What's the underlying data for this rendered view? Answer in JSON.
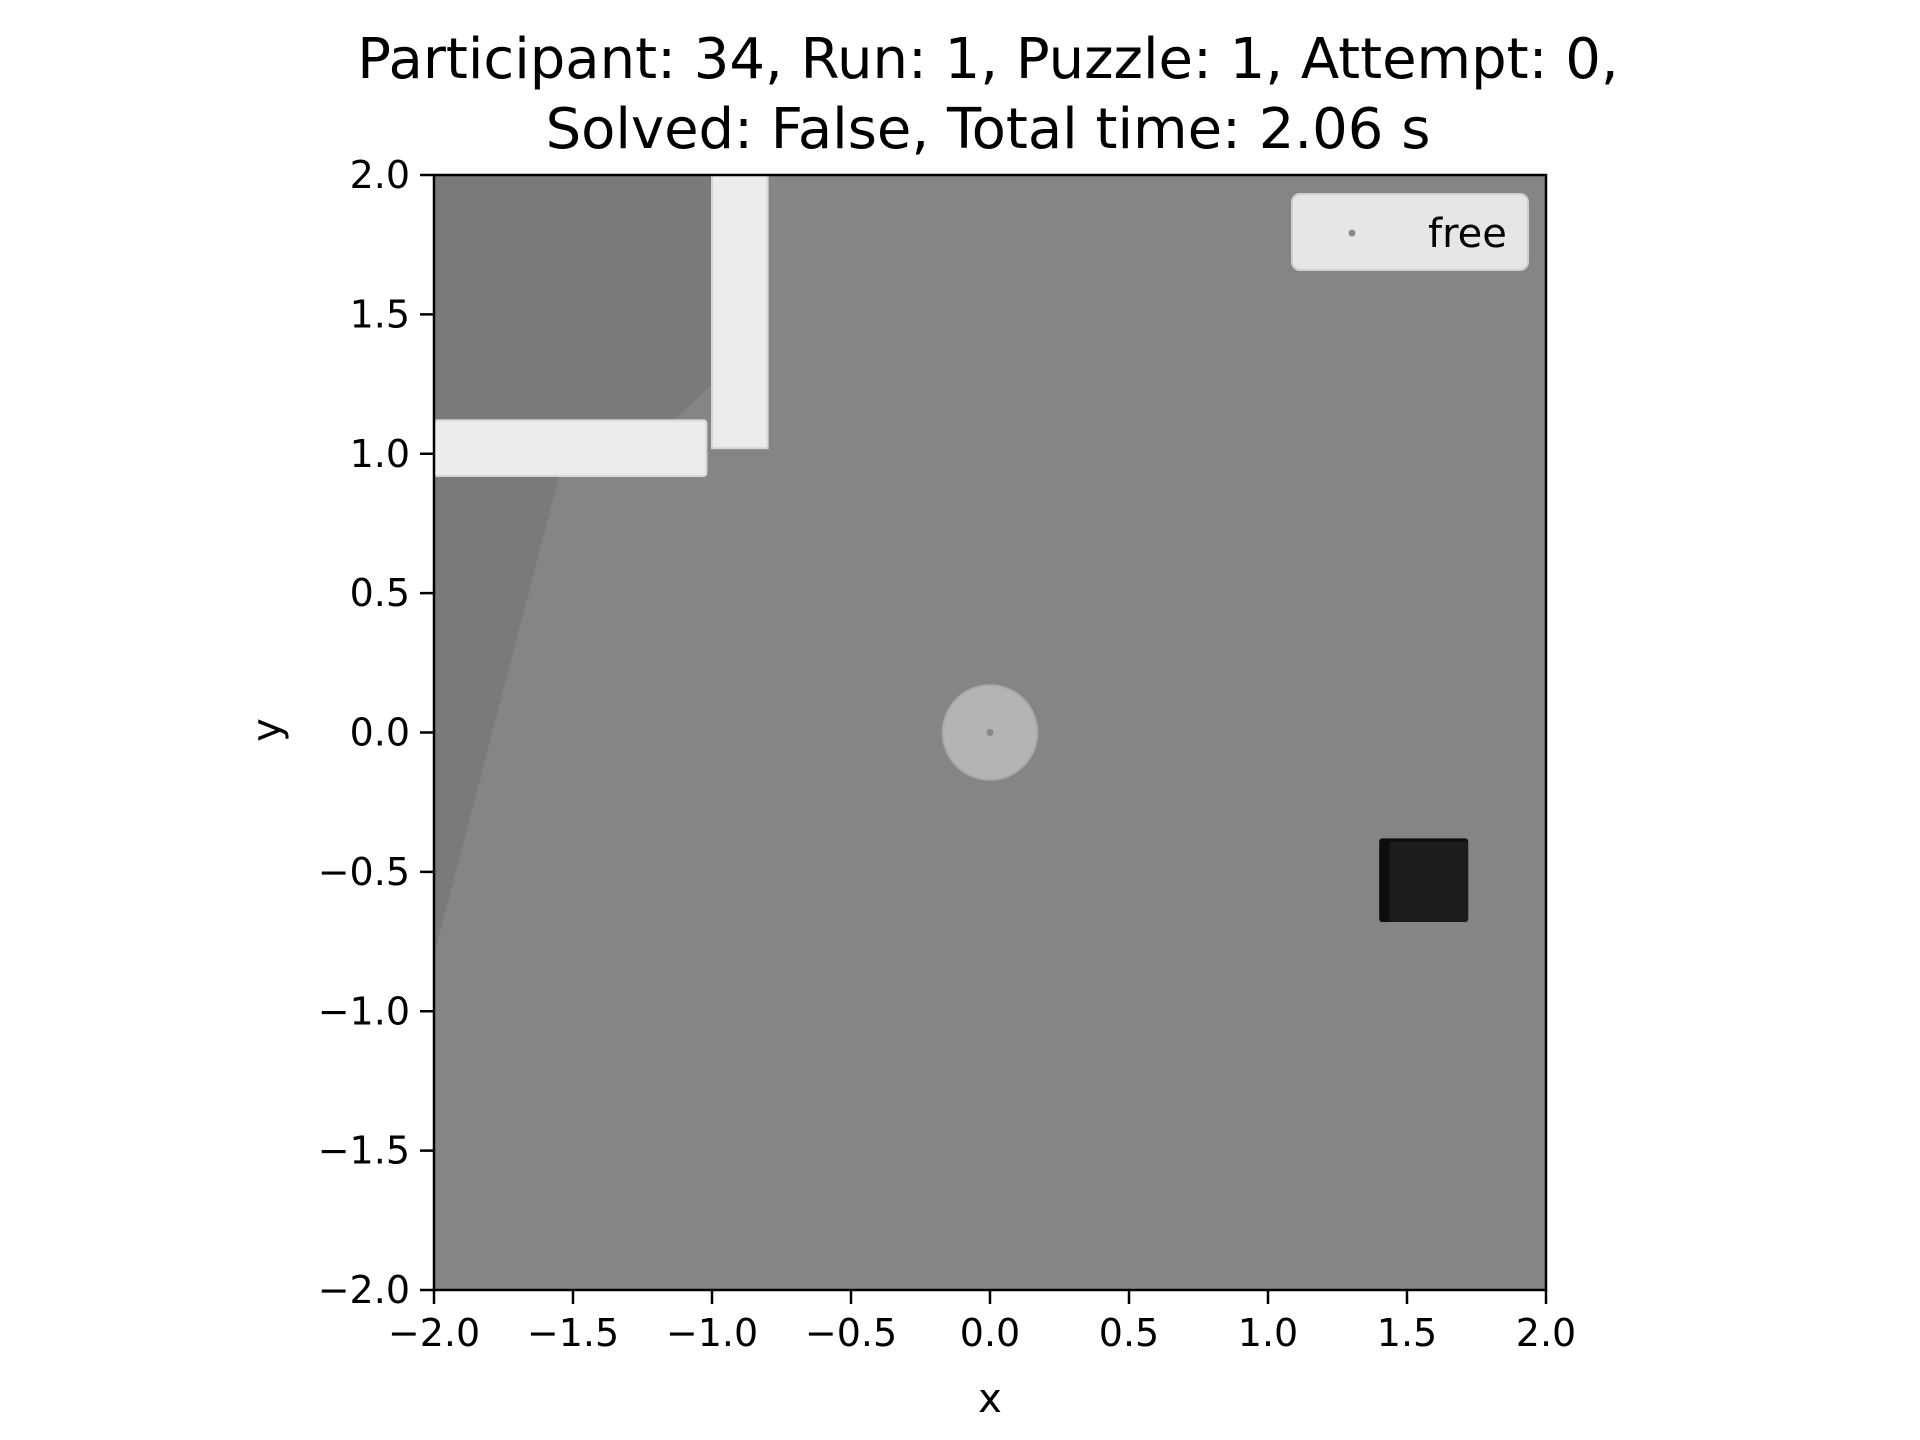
{
  "chart_data": {
    "type": "scatter",
    "title_line1": "Participant: 34, Run: 1, Puzzle: 1, Attempt: 0,",
    "title_line2": "Solved: False, Total time: 2.06 s",
    "xlabel": "x",
    "ylabel": "y",
    "xlim": [
      -2.0,
      2.0
    ],
    "ylim": [
      -2.0,
      2.0
    ],
    "xticks": [
      -2.0,
      -1.5,
      -1.0,
      -0.5,
      0.0,
      0.5,
      1.0,
      1.5,
      2.0
    ],
    "yticks": [
      -2.0,
      -1.5,
      -1.0,
      -0.5,
      0.0,
      0.5,
      1.0,
      1.5,
      2.0
    ],
    "xtick_labels": [
      "−2.0",
      "−1.5",
      "−1.0",
      "−0.5",
      "0.0",
      "0.5",
      "1.0",
      "1.5",
      "2.0"
    ],
    "ytick_labels": [
      "−2.0",
      "−1.5",
      "−1.0",
      "−0.5",
      "0.0",
      "0.5",
      "1.0",
      "1.5",
      "2.0"
    ],
    "grid": false,
    "legend_position": "top-right",
    "series": [
      {
        "name": "free",
        "x": [
          0.0
        ],
        "y": [
          0.0
        ],
        "color": "#8a8a8a"
      }
    ],
    "scene_objects": {
      "player_disc": {
        "cx": 0.0,
        "cy": 0.0,
        "r": 0.17
      },
      "wall_vertical": {
        "x0": -1.0,
        "x1": -0.8,
        "y0": 1.02,
        "y1": 2.0
      },
      "wall_horizontal": {
        "x0": -2.0,
        "x1": -1.02,
        "y0": 0.92,
        "y1": 1.12
      },
      "target_block": {
        "x0": 1.4,
        "x1": 1.72,
        "y0": -0.68,
        "y1": -0.38
      }
    },
    "colors": {
      "background": "#858585",
      "shadow": "#7a7a7a",
      "wall": "#ebebeb",
      "disc": "#b4b4b4",
      "block": "#1c1c1c",
      "legend_bg": "#e6e6e6"
    }
  }
}
